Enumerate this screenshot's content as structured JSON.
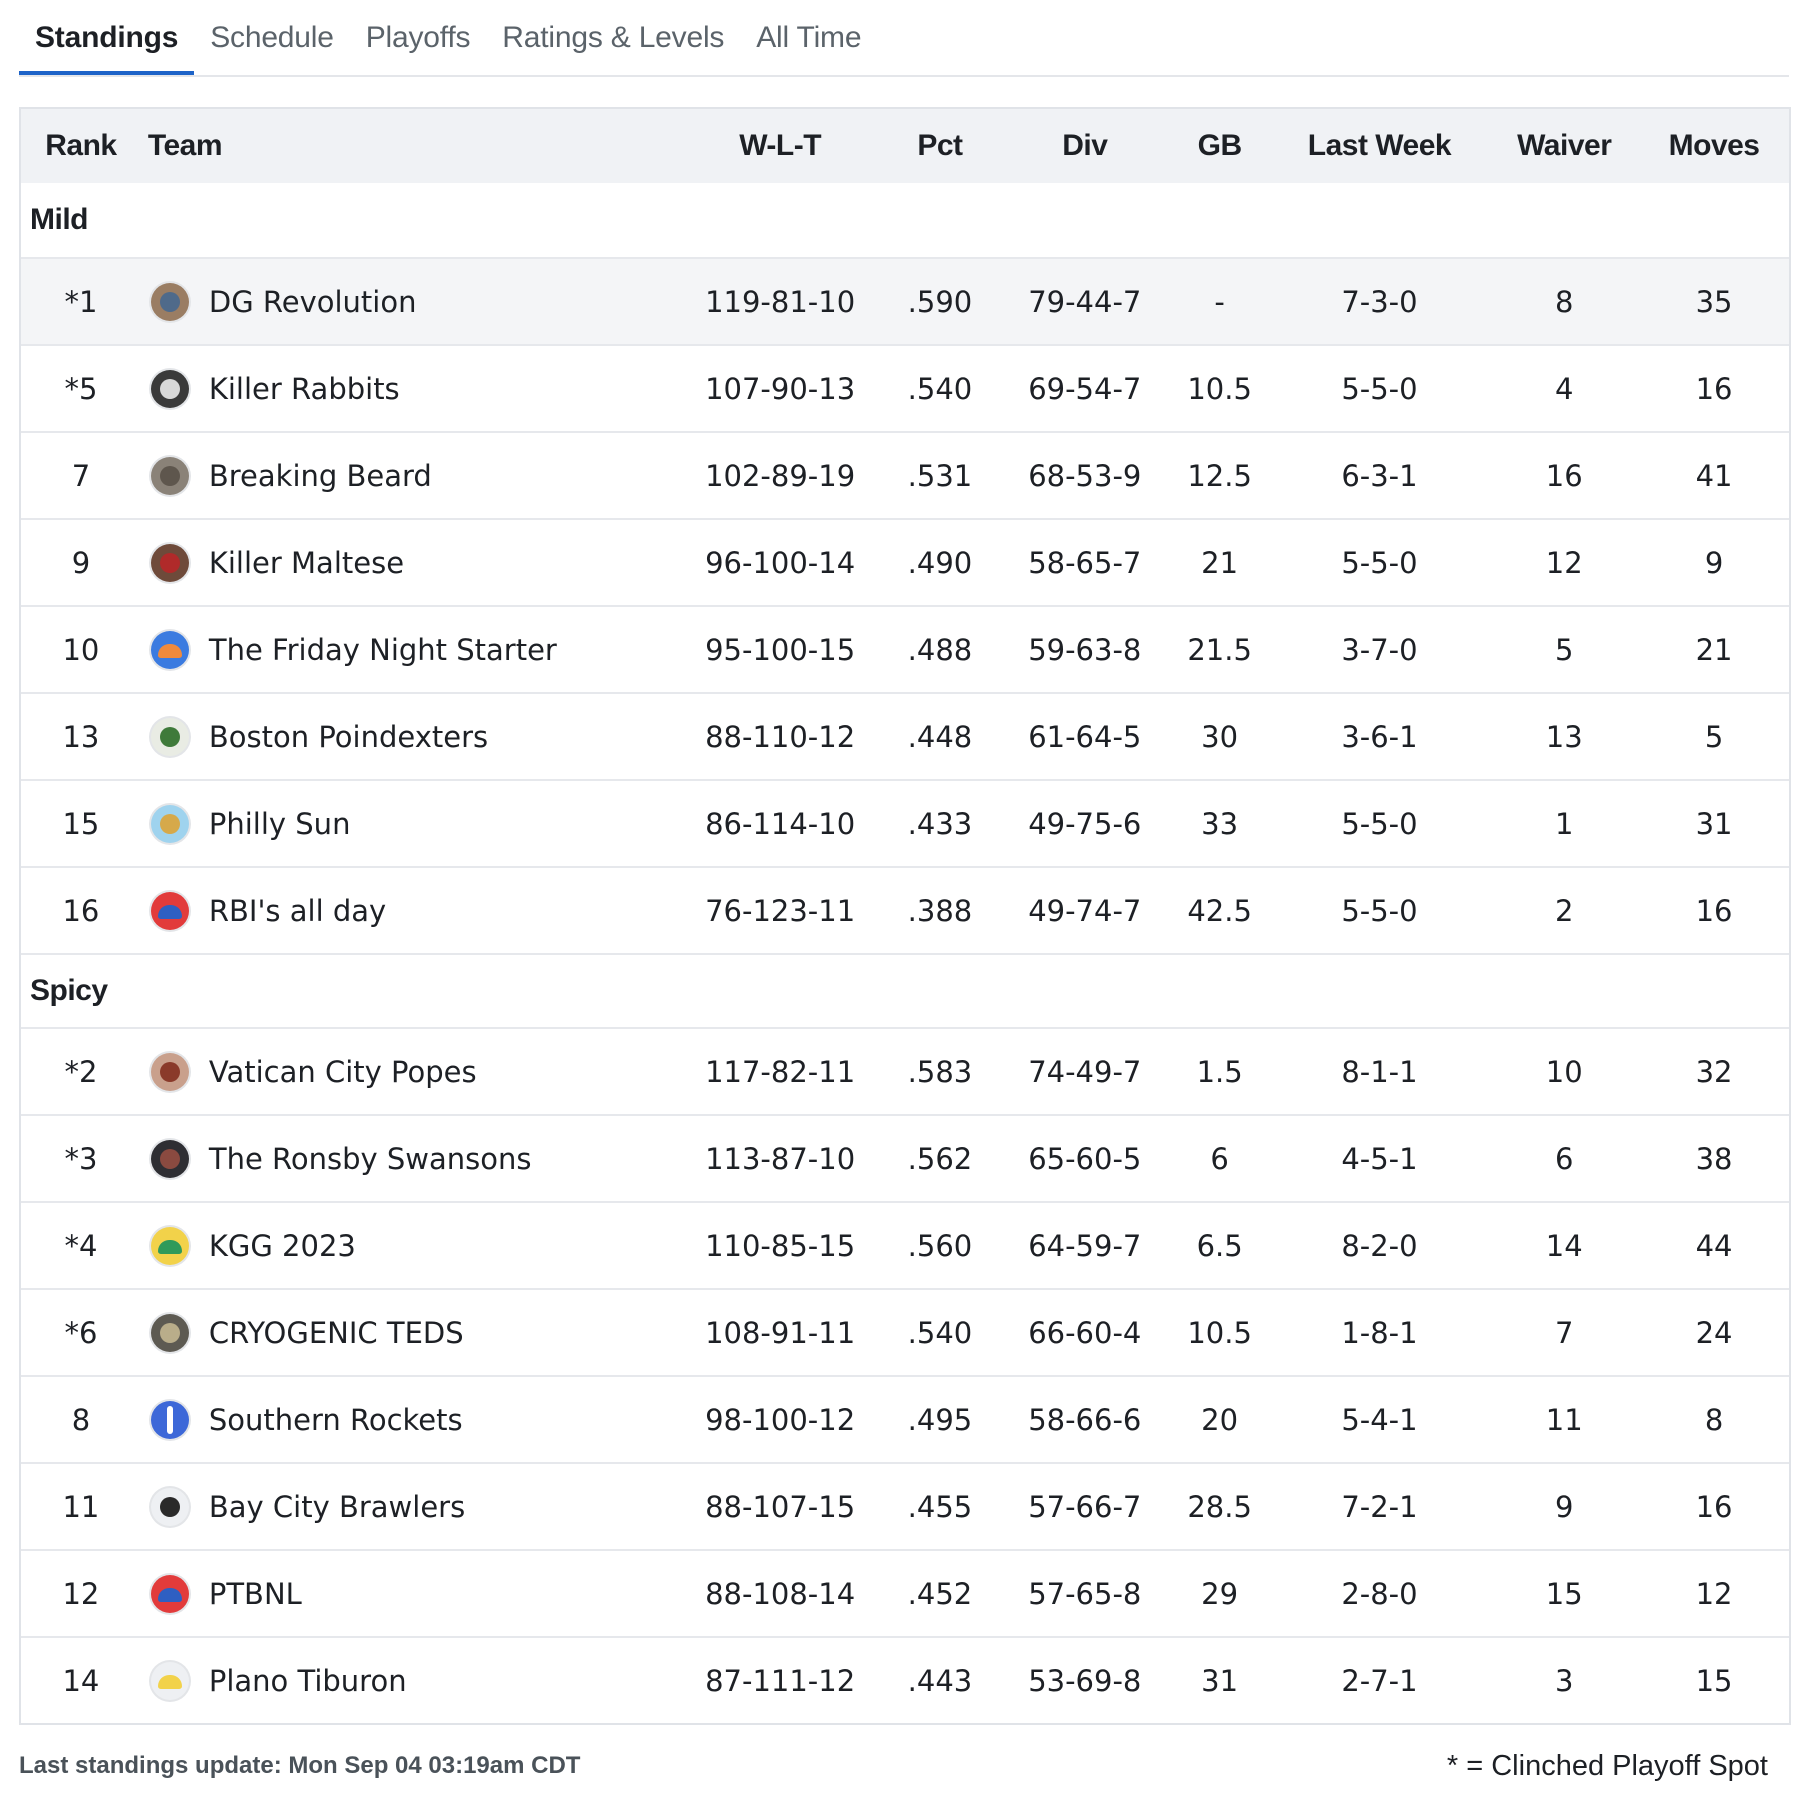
{
  "tabs": [
    {
      "label": "Standings",
      "active": true
    },
    {
      "label": "Schedule",
      "active": false
    },
    {
      "label": "Playoffs",
      "active": false
    },
    {
      "label": "Ratings & Levels",
      "active": false
    },
    {
      "label": "All Time",
      "active": false
    }
  ],
  "columns": {
    "rank": "Rank",
    "team": "Team",
    "wlt": "W-L-T",
    "pct": "Pct",
    "div": "Div",
    "gb": "GB",
    "last_week": "Last Week",
    "waiver": "Waiver",
    "moves": "Moves"
  },
  "divisions": [
    {
      "name": "Mild",
      "teams": [
        {
          "rank": "*1",
          "team": "DG Revolution",
          "wlt": "119-81-10",
          "pct": ".590",
          "div": "79-44-7",
          "gb": "-",
          "last_week": "7-3-0",
          "waiver": "8",
          "moves": "35",
          "highlight": true,
          "avatar": {
            "icon": "photo-icon",
            "color": "#9a7d63",
            "accent": "#4f6a8a"
          }
        },
        {
          "rank": "*5",
          "team": "Killer Rabbits",
          "wlt": "107-90-13",
          "pct": ".540",
          "div": "69-54-7",
          "gb": "10.5",
          "last_week": "5-5-0",
          "waiver": "4",
          "moves": "16",
          "avatar": {
            "icon": "photo-icon",
            "color": "#3a3a3a",
            "accent": "#d8d8d8"
          }
        },
        {
          "rank": "7",
          "team": "Breaking Beard",
          "wlt": "102-89-19",
          "pct": ".531",
          "div": "68-53-9",
          "gb": "12.5",
          "last_week": "6-3-1",
          "waiver": "16",
          "moves": "41",
          "avatar": {
            "icon": "photo-icon",
            "color": "#8a8278",
            "accent": "#5e564d"
          }
        },
        {
          "rank": "9",
          "team": "Killer Maltese",
          "wlt": "96-100-14",
          "pct": ".490",
          "div": "58-65-7",
          "gb": "21",
          "last_week": "5-5-0",
          "waiver": "12",
          "moves": "9",
          "avatar": {
            "icon": "photo-icon",
            "color": "#6e4a3a",
            "accent": "#b02a2a"
          }
        },
        {
          "rank": "10",
          "team": "The Friday Night Starter",
          "wlt": "95-100-15",
          "pct": ".488",
          "div": "59-63-8",
          "gb": "21.5",
          "last_week": "3-7-0",
          "waiver": "5",
          "moves": "21",
          "avatar": {
            "icon": "cap-icon",
            "color": "#3b7be0",
            "accent": "#f08a3c"
          }
        },
        {
          "rank": "13",
          "team": "Boston Poindexters",
          "wlt": "88-110-12",
          "pct": ".448",
          "div": "61-64-5",
          "gb": "30",
          "last_week": "3-6-1",
          "waiver": "13",
          "moves": "5",
          "avatar": {
            "icon": "photo-icon",
            "color": "#e9ece4",
            "accent": "#3f7a3a"
          }
        },
        {
          "rank": "15",
          "team": "Philly Sun",
          "wlt": "86-114-10",
          "pct": ".433",
          "div": "49-75-6",
          "gb": "33",
          "last_week": "5-5-0",
          "waiver": "1",
          "moves": "31",
          "avatar": {
            "icon": "sun-icon",
            "color": "#9fd3ee",
            "accent": "#d6a94a"
          }
        },
        {
          "rank": "16",
          "team": "RBI's all day",
          "wlt": "76-123-11",
          "pct": ".388",
          "div": "49-74-7",
          "gb": "42.5",
          "last_week": "5-5-0",
          "waiver": "2",
          "moves": "16",
          "avatar": {
            "icon": "cap-icon",
            "color": "#e23b3b",
            "accent": "#2e5fc2"
          }
        }
      ]
    },
    {
      "name": "Spicy",
      "teams": [
        {
          "rank": "*2",
          "team": "Vatican City Popes",
          "wlt": "117-82-11",
          "pct": ".583",
          "div": "74-49-7",
          "gb": "1.5",
          "last_week": "8-1-1",
          "waiver": "10",
          "moves": "32",
          "avatar": {
            "icon": "photo-icon",
            "color": "#c9a08c",
            "accent": "#8a3a2a"
          }
        },
        {
          "rank": "*3",
          "team": "The Ronsby Swansons",
          "wlt": "113-87-10",
          "pct": ".562",
          "div": "65-60-5",
          "gb": "6",
          "last_week": "4-5-1",
          "waiver": "6",
          "moves": "38",
          "avatar": {
            "icon": "photo-icon",
            "color": "#2e2e33",
            "accent": "#8a4a40"
          }
        },
        {
          "rank": "*4",
          "team": "KGG 2023",
          "wlt": "110-85-15",
          "pct": ".560",
          "div": "64-59-7",
          "gb": "6.5",
          "last_week": "8-2-0",
          "waiver": "14",
          "moves": "44",
          "avatar": {
            "icon": "cap-icon",
            "color": "#f2d24a",
            "accent": "#2f9a5a"
          }
        },
        {
          "rank": "*6",
          "team": "CRYOGENIC TEDS",
          "wlt": "108-91-11",
          "pct": ".540",
          "div": "66-60-4",
          "gb": "10.5",
          "last_week": "1-8-1",
          "waiver": "7",
          "moves": "24",
          "avatar": {
            "icon": "photo-icon",
            "color": "#5d5a52",
            "accent": "#b9ad8a"
          }
        },
        {
          "rank": "8",
          "team": "Southern Rockets",
          "wlt": "98-100-12",
          "pct": ".495",
          "div": "58-66-6",
          "gb": "20",
          "last_week": "5-4-1",
          "waiver": "11",
          "moves": "8",
          "avatar": {
            "icon": "rocket-icon",
            "color": "#3d68d8",
            "accent": "#ffffff"
          }
        },
        {
          "rank": "11",
          "team": "Bay City Brawlers",
          "wlt": "88-107-15",
          "pct": ".455",
          "div": "57-66-7",
          "gb": "28.5",
          "last_week": "7-2-1",
          "waiver": "9",
          "moves": "16",
          "avatar": {
            "icon": "photo-icon",
            "color": "#eef0f3",
            "accent": "#2a2a2a"
          }
        },
        {
          "rank": "12",
          "team": "PTBNL",
          "wlt": "88-108-14",
          "pct": ".452",
          "div": "57-65-8",
          "gb": "29",
          "last_week": "2-8-0",
          "waiver": "15",
          "moves": "12",
          "avatar": {
            "icon": "cap-icon",
            "color": "#e23b3b",
            "accent": "#2e5fc2"
          }
        },
        {
          "rank": "14",
          "team": "Plano Tiburon",
          "wlt": "87-111-12",
          "pct": ".443",
          "div": "53-69-8",
          "gb": "31",
          "last_week": "2-7-1",
          "waiver": "3",
          "moves": "15",
          "avatar": {
            "icon": "cap-icon",
            "color": "#eef0f3",
            "accent": "#f2d24a"
          }
        }
      ]
    }
  ],
  "footer": {
    "last_update": "Last standings update: Mon Sep 04 03:19am CDT",
    "legend": "* = Clinched Playoff Spot"
  }
}
